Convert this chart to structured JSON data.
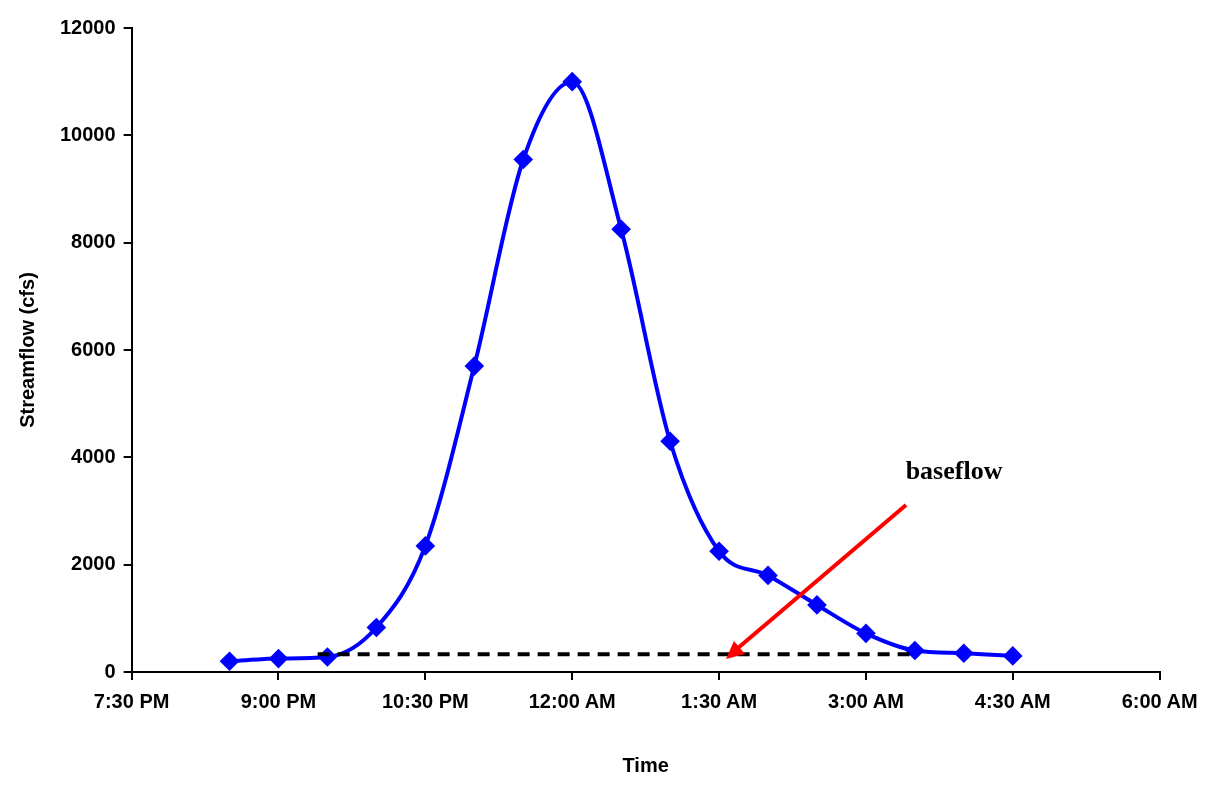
{
  "chart_data": {
    "type": "line",
    "xlabel": "Time",
    "ylabel": "Streamflow (cfs)",
    "xlim": [
      "2000-01-01T19:30",
      "2000-01-02T06:00"
    ],
    "xticks": [
      {
        "value": "2000-01-01T19:30",
        "label": "7:30 PM"
      },
      {
        "value": "2000-01-01T21:00",
        "label": "9:00 PM"
      },
      {
        "value": "2000-01-01T22:30",
        "label": "10:30 PM"
      },
      {
        "value": "2000-01-02T00:00",
        "label": "12:00 AM"
      },
      {
        "value": "2000-01-02T01:30",
        "label": "1:30 AM"
      },
      {
        "value": "2000-01-02T03:00",
        "label": "3:00 AM"
      },
      {
        "value": "2000-01-02T04:30",
        "label": "4:30 AM"
      },
      {
        "value": "2000-01-02T06:00",
        "label": "6:00 AM"
      }
    ],
    "ylim": [
      0,
      12000
    ],
    "yticks": [
      0,
      2000,
      4000,
      6000,
      8000,
      10000,
      12000
    ],
    "series": [
      {
        "type": "line",
        "color": "#0000ff",
        "marker": "diamond",
        "line_style": "solid",
        "x": [
          "2000-01-01T20:30",
          "2000-01-01T21:00",
          "2000-01-01T21:30",
          "2000-01-01T22:00",
          "2000-01-01T22:30",
          "2000-01-01T23:00",
          "2000-01-01T23:30",
          "2000-01-02T00:00",
          "2000-01-02T00:30",
          "2000-01-02T01:00",
          "2000-01-02T01:30",
          "2000-01-02T02:00",
          "2000-01-02T02:30",
          "2000-01-02T03:00",
          "2000-01-02T03:30",
          "2000-01-02T04:00",
          "2000-01-02T04:30"
        ],
        "values": [
          200,
          250,
          280,
          830,
          2350,
          5700,
          9550,
          11000,
          8250,
          4300,
          2250,
          1800,
          1250,
          720,
          400,
          350,
          300
        ]
      },
      {
        "type": "line",
        "color": "#000000",
        "marker": "none",
        "line_style": "dashed",
        "x": [
          "2000-01-01T21:24",
          "2000-01-02T03:30"
        ],
        "values": [
          330,
          330
        ]
      }
    ],
    "annotations": [
      "baseflow"
    ]
  }
}
